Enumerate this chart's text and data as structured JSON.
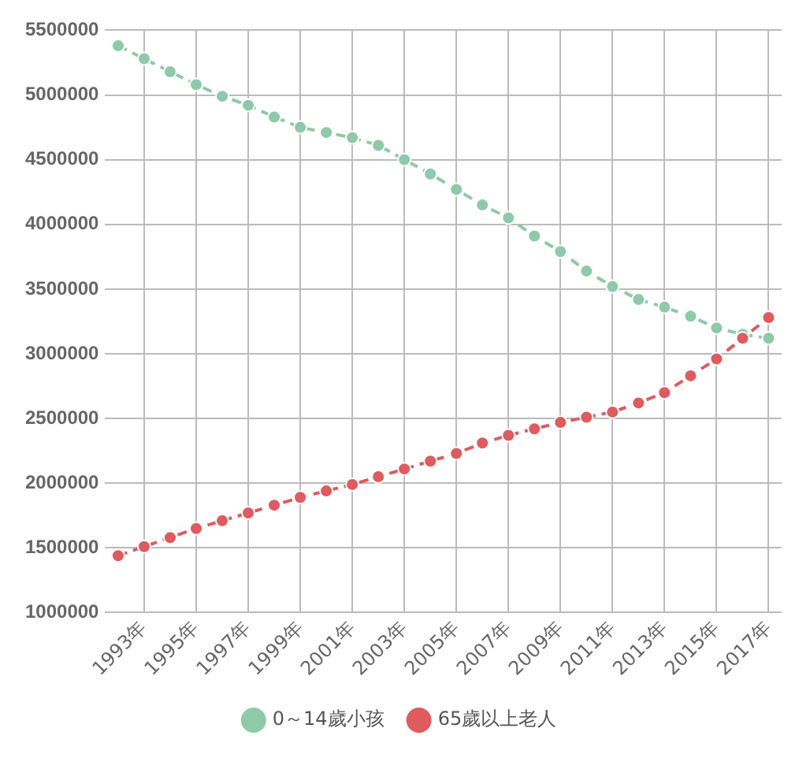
{
  "chart_data": {
    "type": "line",
    "categories": [
      null,
      "1993年",
      null,
      "1995年",
      null,
      "1997年",
      null,
      "1999年",
      null,
      "2001年",
      null,
      "2003年",
      null,
      "2005年",
      null,
      "2007年",
      null,
      "2009年",
      null,
      "2011年",
      null,
      "2013年",
      null,
      "2015年",
      null,
      "2017年"
    ],
    "series": [
      {
        "name": "0～14歲小孩",
        "color": "#8ecaa8",
        "values": [
          5380000,
          5280000,
          5180000,
          5080000,
          4990000,
          4920000,
          4830000,
          4750000,
          4710000,
          4670000,
          4610000,
          4500000,
          4390000,
          4270000,
          4150000,
          4050000,
          3910000,
          3790000,
          3640000,
          3520000,
          3420000,
          3360000,
          3290000,
          3200000,
          3150000,
          3120000
        ]
      },
      {
        "name": "65歲以上老人",
        "color": "#e05a5e",
        "values": [
          1440000,
          1510000,
          1580000,
          1650000,
          1710000,
          1770000,
          1830000,
          1890000,
          1940000,
          1990000,
          2050000,
          2110000,
          2170000,
          2230000,
          2310000,
          2370000,
          2420000,
          2470000,
          2510000,
          2550000,
          2620000,
          2700000,
          2830000,
          2960000,
          3120000,
          3280000
        ]
      }
    ],
    "ylim": [
      1000000,
      5500000
    ],
    "yticks": [
      1000000,
      1500000,
      2000000,
      2500000,
      3000000,
      3500000,
      4000000,
      4500000,
      5000000,
      5500000
    ],
    "grid": true,
    "legend": "bottom",
    "marker": "circle",
    "line_style": "dashed"
  }
}
